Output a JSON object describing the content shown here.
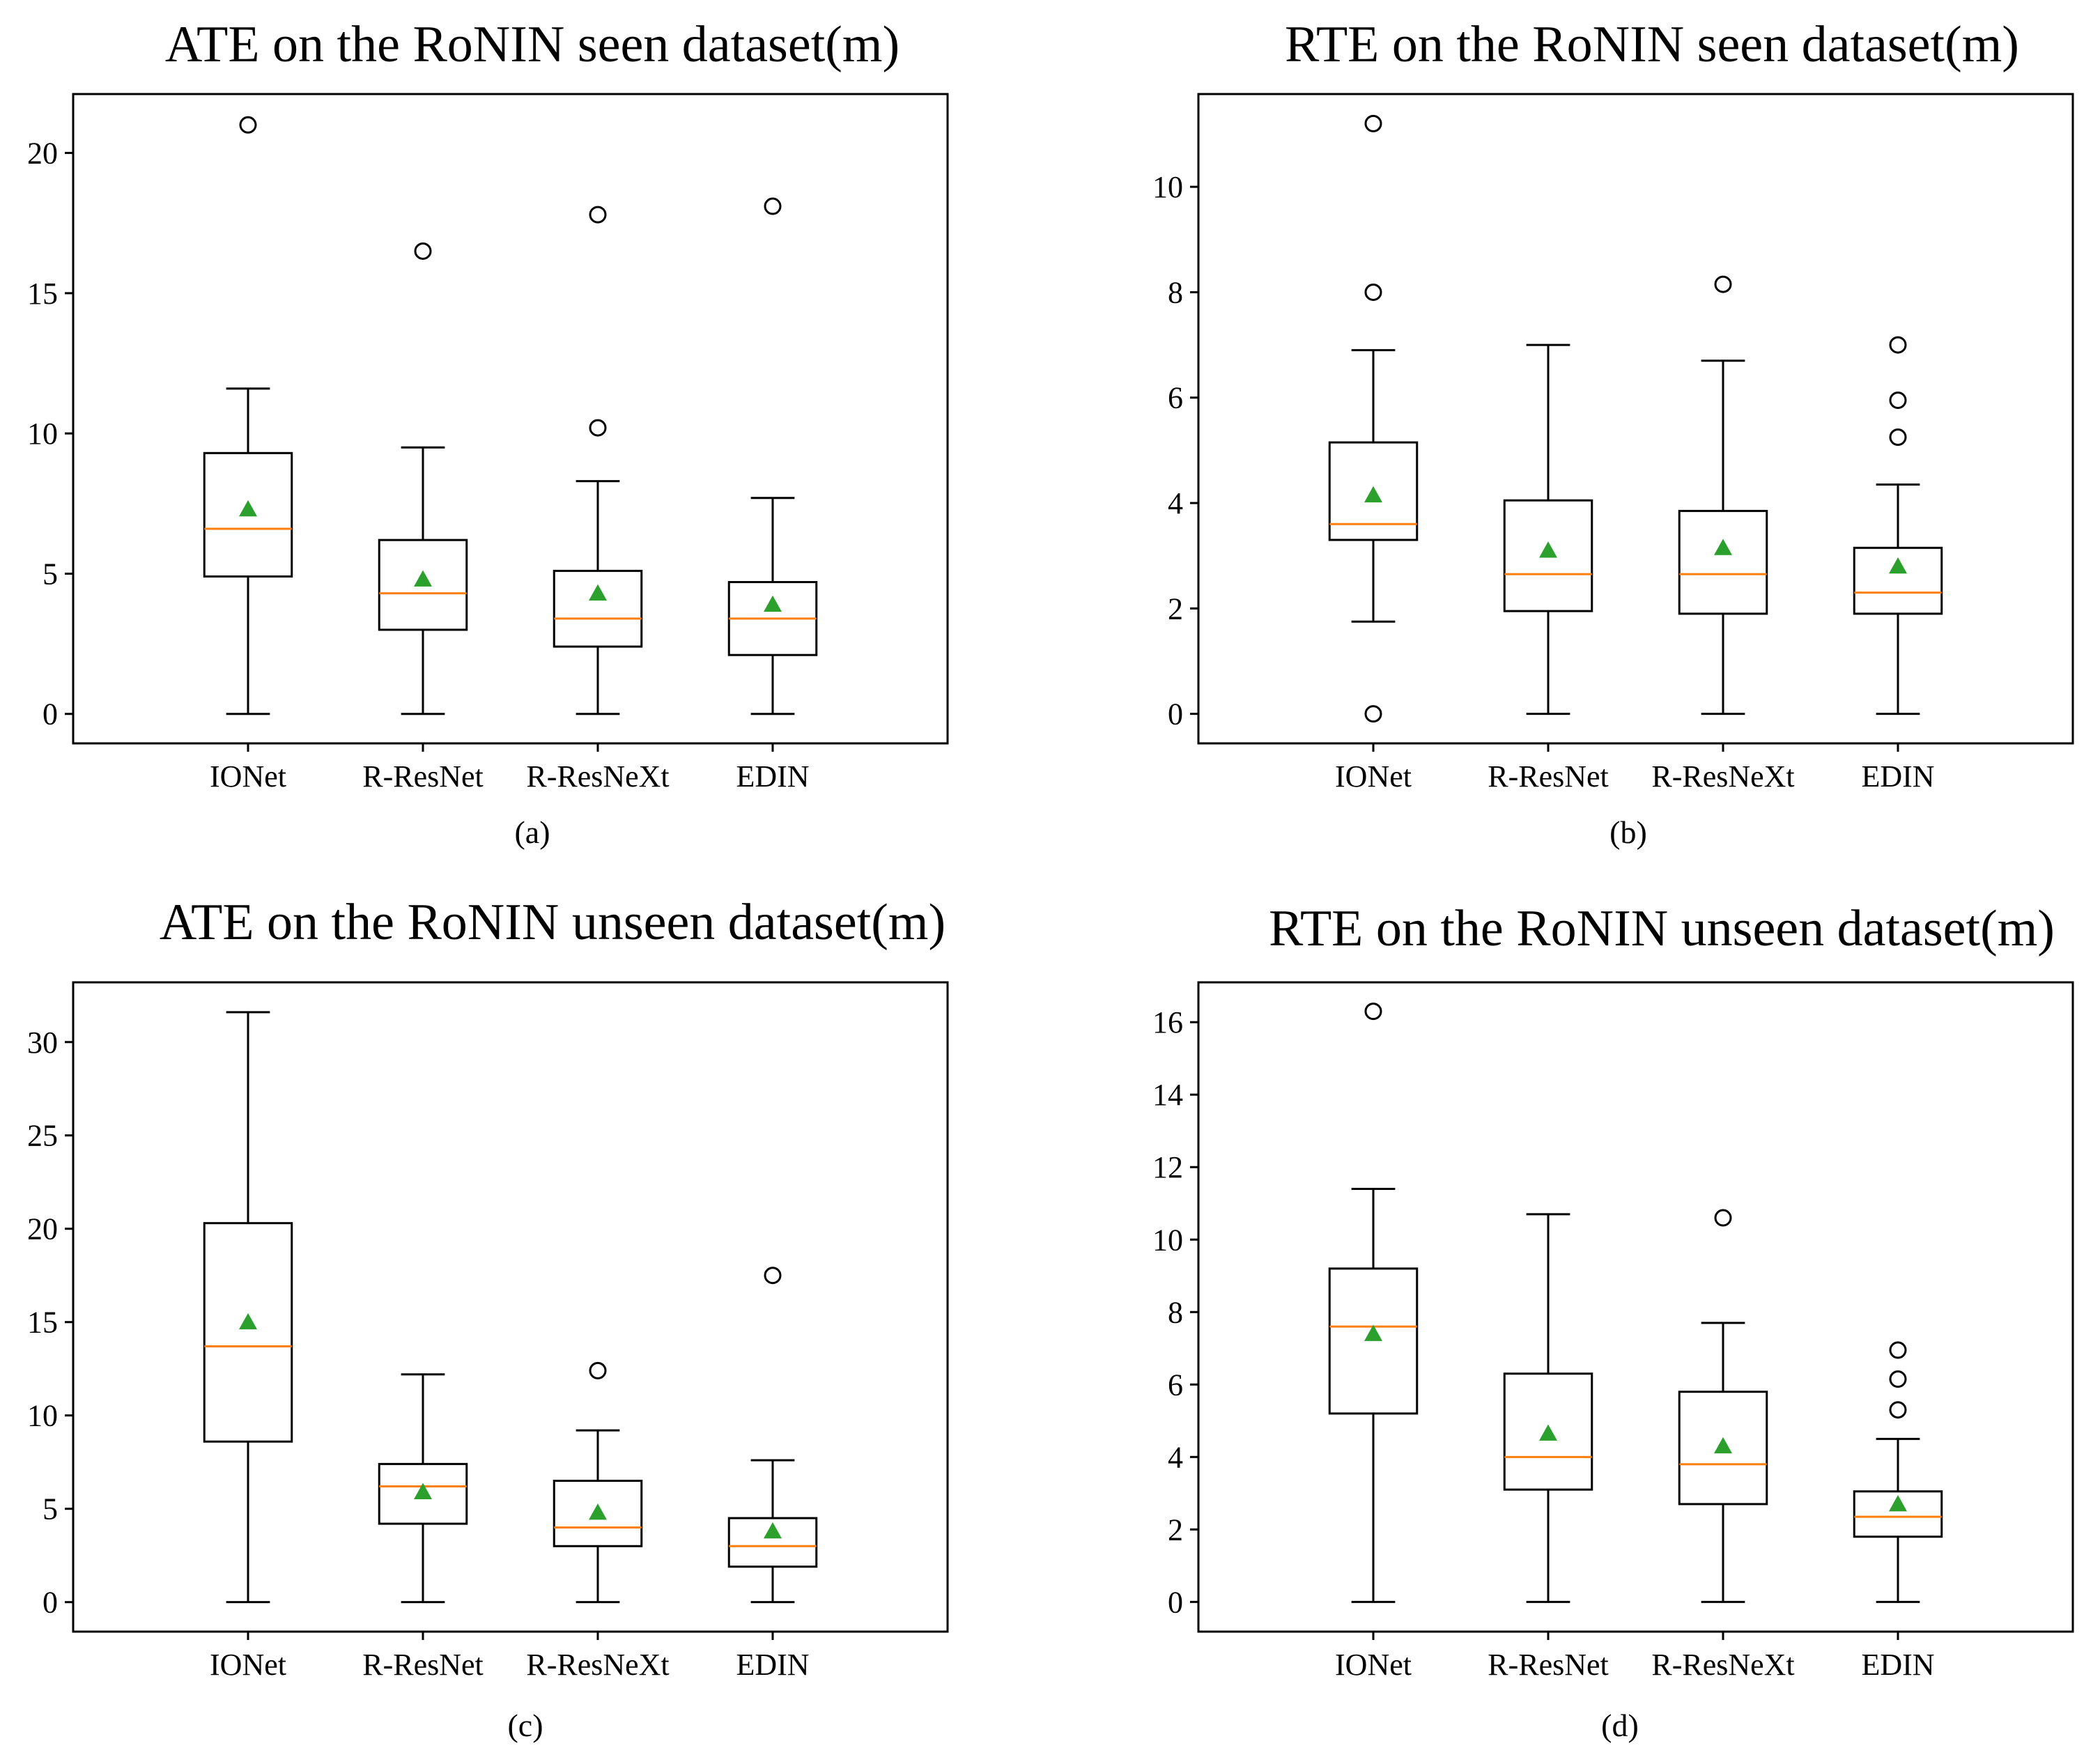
{
  "chart_data": [
    {
      "type": "box",
      "title": "ATE on the RoNIN seen dataset(m)",
      "label": "(a)",
      "categories": [
        "IONet",
        "R-ResNet",
        "R-ResNeXt",
        "EDIN"
      ],
      "ylim": [
        -1.05,
        22.1
      ],
      "yticks": [
        0,
        5,
        10,
        15,
        20
      ],
      "grid": false,
      "colors": {
        "median": "#ff7f0e",
        "mean": "#2ca02c",
        "box": "#000000"
      },
      "boxes": [
        {
          "whisker_low": 0,
          "q1": 4.9,
          "median": 6.6,
          "q3": 9.3,
          "whisker_high": 11.6,
          "mean": 7.3,
          "outliers": [
            21.0
          ]
        },
        {
          "whisker_low": 0,
          "q1": 3.0,
          "median": 4.3,
          "q3": 6.2,
          "whisker_high": 9.5,
          "mean": 4.8,
          "outliers": [
            16.5
          ]
        },
        {
          "whisker_low": 0,
          "q1": 2.4,
          "median": 3.4,
          "q3": 5.1,
          "whisker_high": 8.3,
          "mean": 4.3,
          "outliers": [
            10.2,
            17.8
          ]
        },
        {
          "whisker_low": 0,
          "q1": 2.1,
          "median": 3.4,
          "q3": 4.7,
          "whisker_high": 7.7,
          "mean": 3.9,
          "outliers": [
            18.1
          ]
        }
      ]
    },
    {
      "type": "box",
      "title": "RTE on the RoNIN seen dataset(m)",
      "label": "(b)",
      "categories": [
        "IONet",
        "R-ResNet",
        "R-ResNeXt",
        "EDIN"
      ],
      "ylim": [
        -0.56,
        11.76
      ],
      "yticks": [
        0,
        2,
        4,
        6,
        8,
        10
      ],
      "grid": false,
      "colors": {
        "median": "#ff7f0e",
        "mean": "#2ca02c",
        "box": "#000000"
      },
      "boxes": [
        {
          "whisker_low": 1.75,
          "q1": 3.3,
          "median": 3.6,
          "q3": 5.15,
          "whisker_high": 6.9,
          "mean": 4.15,
          "outliers": [
            0.0,
            8.0,
            11.2
          ]
        },
        {
          "whisker_low": 0,
          "q1": 1.95,
          "median": 2.65,
          "q3": 4.05,
          "whisker_high": 7.0,
          "mean": 3.1,
          "outliers": []
        },
        {
          "whisker_low": 0,
          "q1": 1.9,
          "median": 2.65,
          "q3": 3.85,
          "whisker_high": 6.7,
          "mean": 3.15,
          "outliers": [
            8.15
          ]
        },
        {
          "whisker_low": 0,
          "q1": 1.9,
          "median": 2.3,
          "q3": 3.15,
          "whisker_high": 4.35,
          "mean": 2.8,
          "outliers": [
            5.25,
            5.95,
            7.0
          ]
        }
      ]
    },
    {
      "type": "box",
      "title": "ATE on the RoNIN unseen dataset(m)",
      "label": "(c)",
      "categories": [
        "IONet",
        "R-ResNet",
        "R-ResNeXt",
        "EDIN"
      ],
      "ylim": [
        -1.58,
        33.2
      ],
      "yticks": [
        0,
        5,
        10,
        15,
        20,
        25,
        30
      ],
      "grid": false,
      "colors": {
        "median": "#ff7f0e",
        "mean": "#2ca02c",
        "box": "#000000"
      },
      "boxes": [
        {
          "whisker_low": 0,
          "q1": 8.6,
          "median": 13.7,
          "q3": 20.3,
          "whisker_high": 31.6,
          "mean": 15.0,
          "outliers": []
        },
        {
          "whisker_low": 0,
          "q1": 4.2,
          "median": 6.2,
          "q3": 7.4,
          "whisker_high": 12.2,
          "mean": 5.9,
          "outliers": []
        },
        {
          "whisker_low": 0,
          "q1": 3.0,
          "median": 4.0,
          "q3": 6.5,
          "whisker_high": 9.2,
          "mean": 4.8,
          "outliers": [
            12.4
          ]
        },
        {
          "whisker_low": 0,
          "q1": 1.9,
          "median": 3.0,
          "q3": 4.5,
          "whisker_high": 7.6,
          "mean": 3.8,
          "outliers": [
            17.5
          ]
        }
      ]
    },
    {
      "type": "box",
      "title": "RTE on the RoNIN unseen dataset(m)",
      "label": "(d)",
      "categories": [
        "IONet",
        "R-ResNet",
        "R-ResNeXt",
        "EDIN"
      ],
      "ylim": [
        -0.82,
        17.1
      ],
      "yticks": [
        0,
        2,
        4,
        6,
        8,
        10,
        12,
        14,
        16
      ],
      "grid": false,
      "colors": {
        "median": "#ff7f0e",
        "mean": "#2ca02c",
        "box": "#000000"
      },
      "boxes": [
        {
          "whisker_low": 0,
          "q1": 5.2,
          "median": 7.6,
          "q3": 9.2,
          "whisker_high": 11.4,
          "mean": 7.4,
          "outliers": [
            16.3
          ]
        },
        {
          "whisker_low": 0,
          "q1": 3.1,
          "median": 4.0,
          "q3": 6.3,
          "whisker_high": 10.7,
          "mean": 4.65,
          "outliers": []
        },
        {
          "whisker_low": 0,
          "q1": 2.7,
          "median": 3.8,
          "q3": 5.8,
          "whisker_high": 7.7,
          "mean": 4.3,
          "outliers": [
            10.6
          ]
        },
        {
          "whisker_low": 0,
          "q1": 1.8,
          "median": 2.35,
          "q3": 3.05,
          "whisker_high": 4.5,
          "mean": 2.7,
          "outliers": [
            5.3,
            6.15,
            6.95
          ]
        }
      ]
    }
  ]
}
